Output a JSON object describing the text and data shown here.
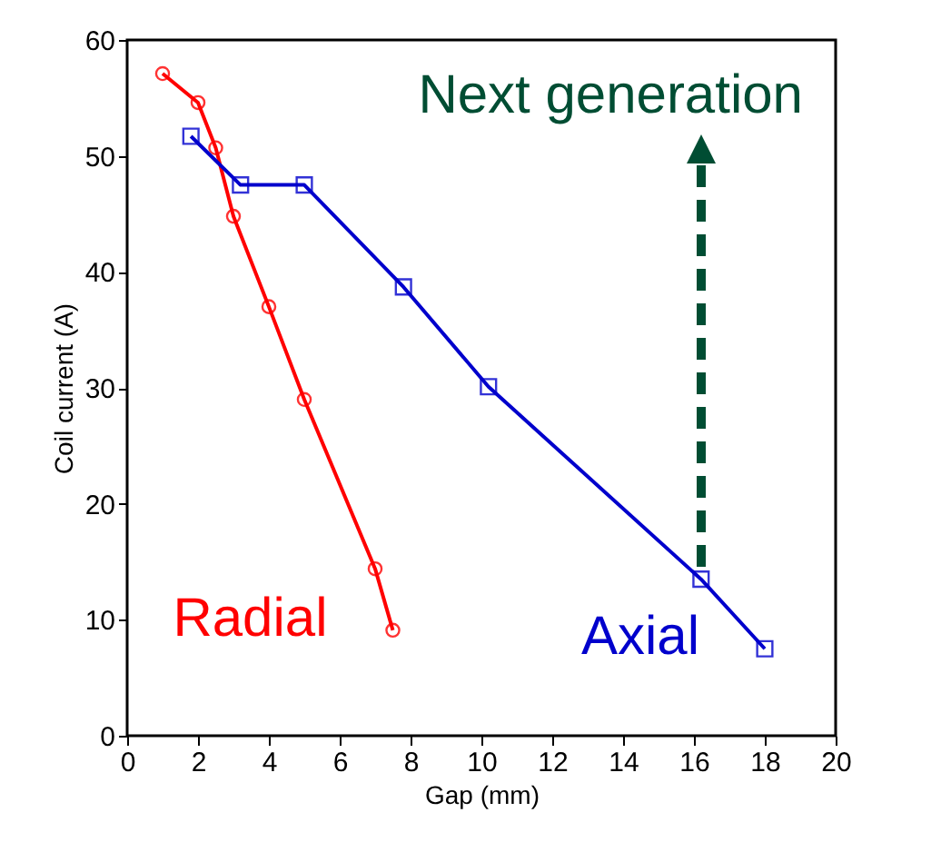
{
  "chart_data": {
    "type": "line",
    "xlabel": "Gap (mm)",
    "ylabel": "Coil current (A)",
    "xlim": [
      0,
      20
    ],
    "xticks": [
      0,
      2,
      4,
      6,
      8,
      10,
      12,
      14,
      16,
      18,
      20
    ],
    "ylim": [
      0,
      60
    ],
    "yticks": [
      0,
      10,
      20,
      30,
      40,
      50,
      60
    ],
    "grid": false,
    "legend": false,
    "series": [
      {
        "name": "Radial",
        "color": "#ff0000",
        "marker": "circle",
        "x": [
          1,
          2,
          2.5,
          3,
          4,
          5,
          7,
          7.5
        ],
        "values": [
          57.1,
          54.6,
          50.7,
          44.8,
          37,
          29,
          14.4,
          9.1
        ]
      },
      {
        "name": "Axial",
        "color": "#0000cc",
        "marker": "square",
        "x": [
          1.8,
          3.2,
          5,
          7.8,
          10.2,
          16.2,
          18
        ],
        "values": [
          51.7,
          47.5,
          47.5,
          38.7,
          30.1,
          13.5,
          7.5
        ]
      }
    ],
    "annotations": [
      "Next generation"
    ]
  }
}
